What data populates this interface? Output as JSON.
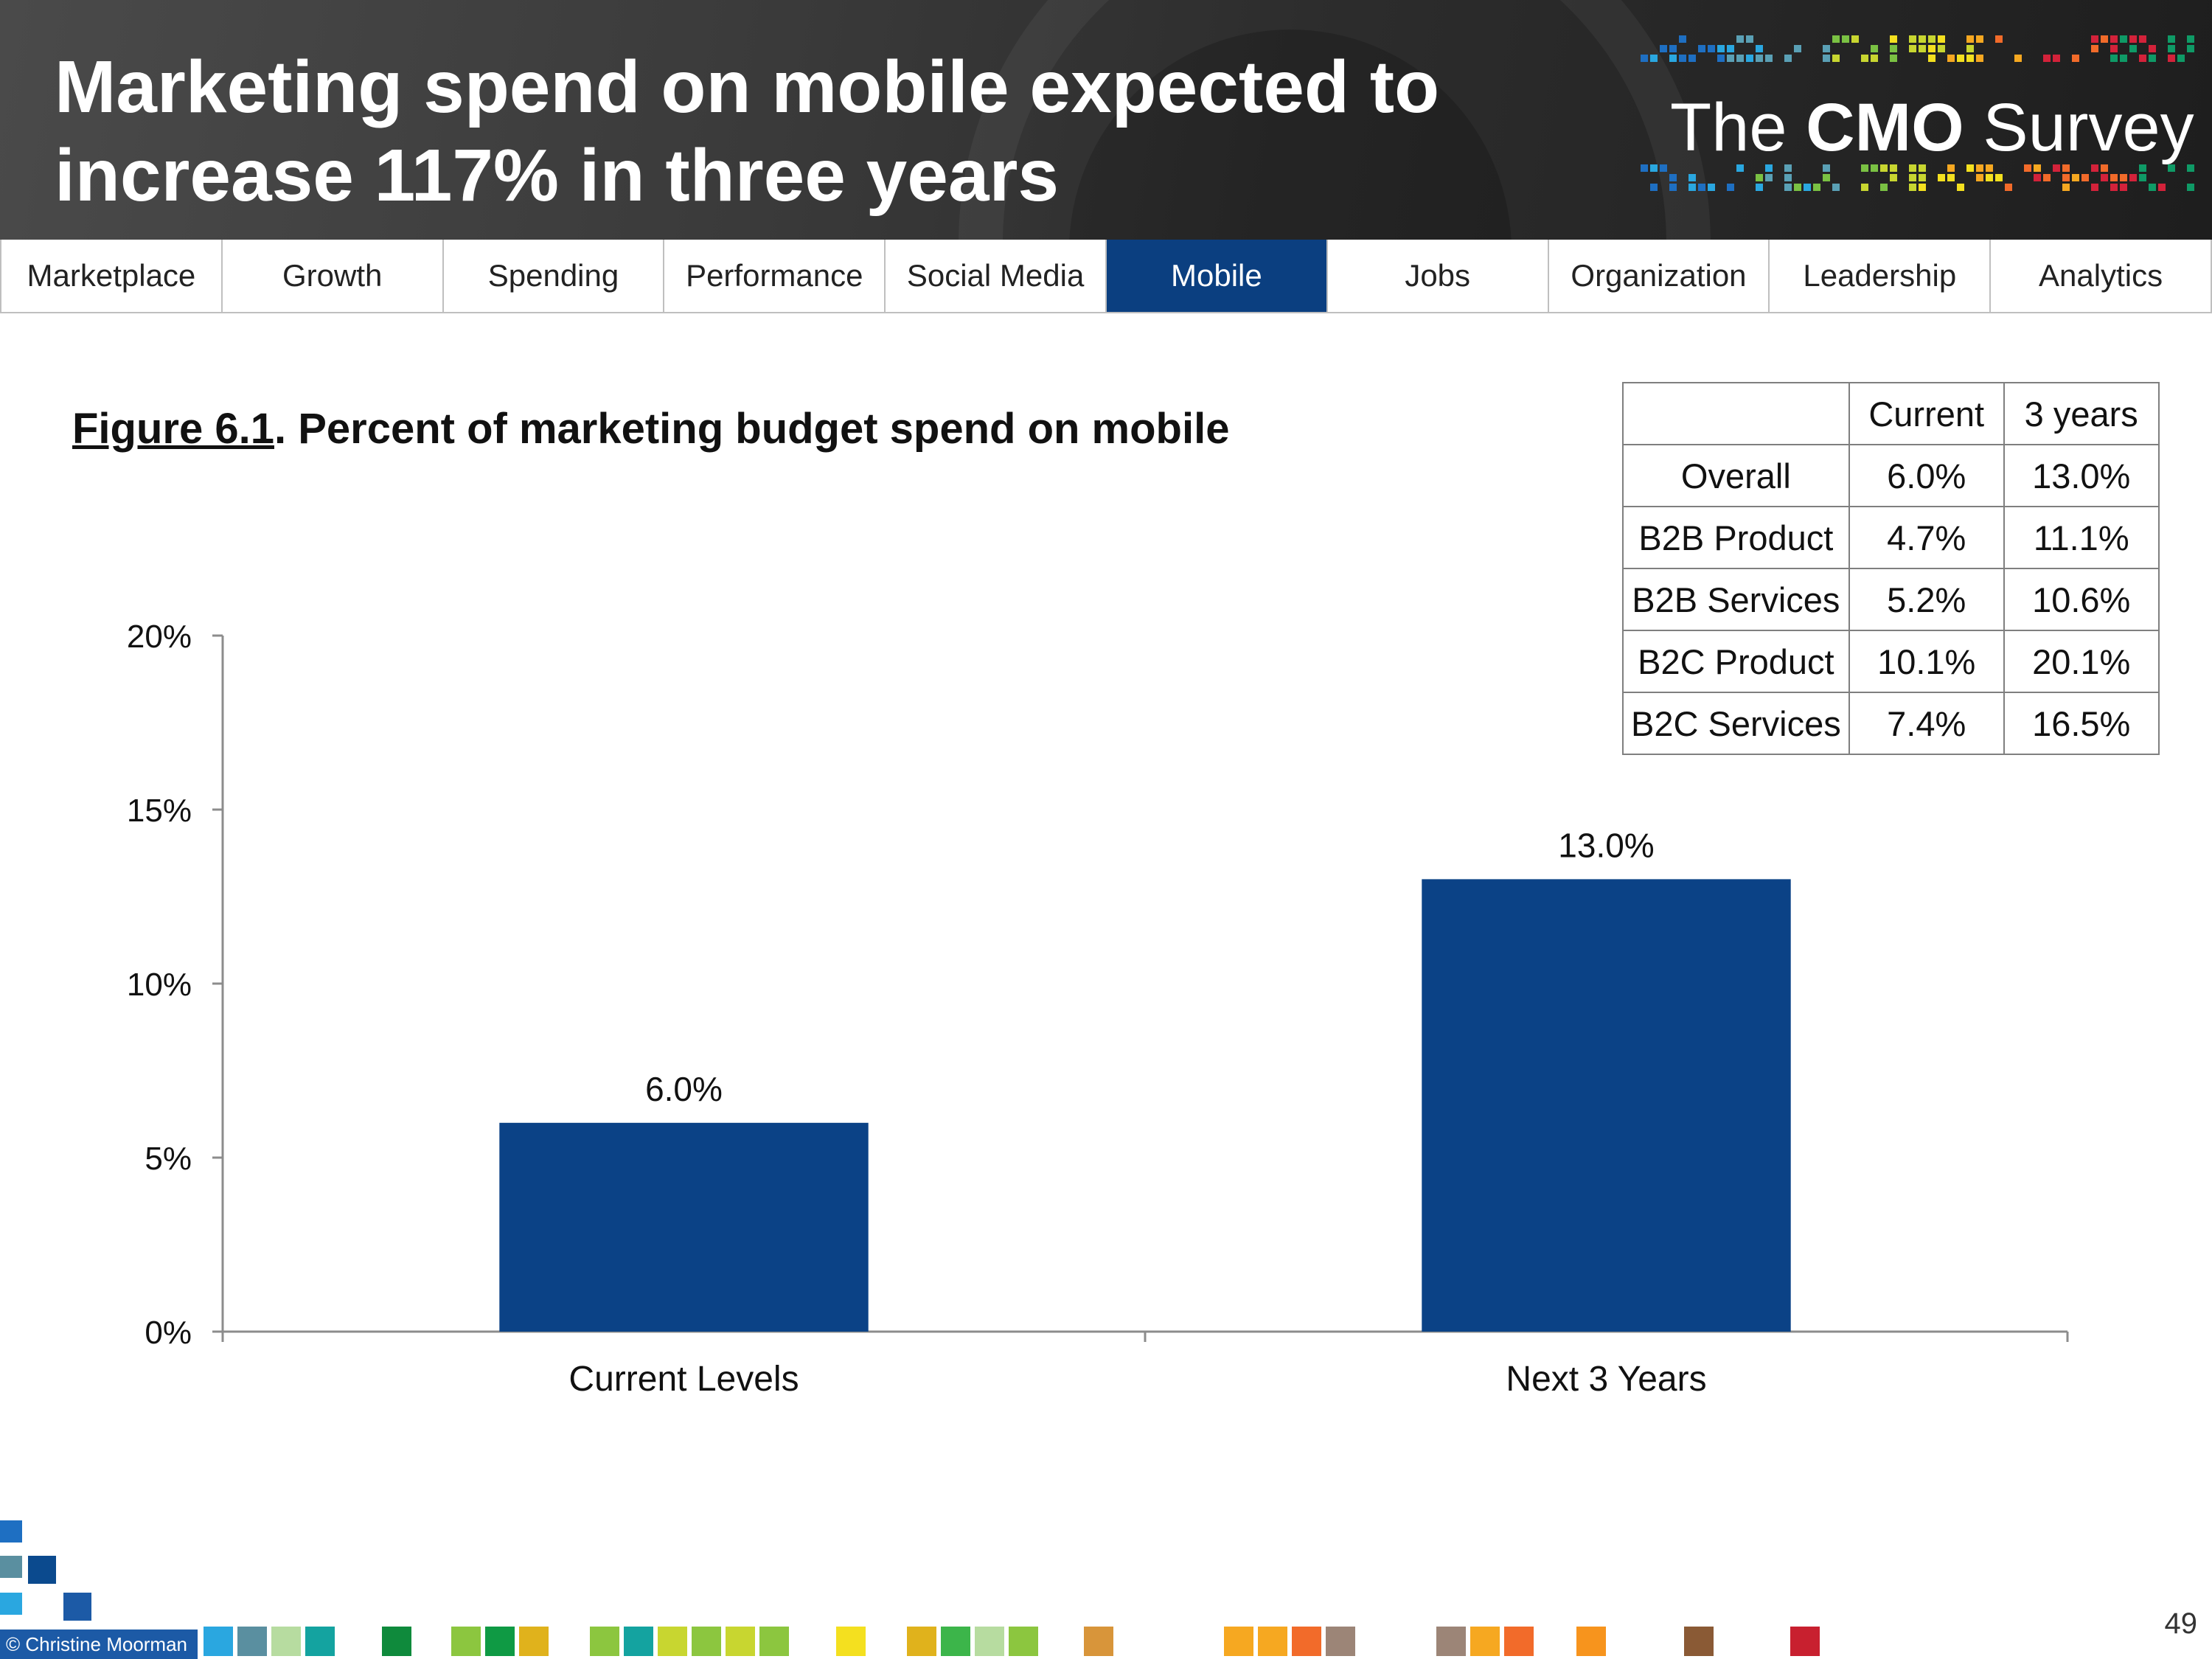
{
  "header": {
    "title_line1": "Marketing spend on mobile expected to",
    "title_line2": "increase 117% in three years",
    "logo_prefix": "The ",
    "logo_bold": "CMO",
    "logo_suffix": " Survey"
  },
  "nav": {
    "tabs": [
      {
        "label": "Marketplace",
        "active": false
      },
      {
        "label": "Growth",
        "active": false
      },
      {
        "label": "Spending",
        "active": false
      },
      {
        "label": "Performance",
        "active": false
      },
      {
        "label": "Social Media",
        "active": false
      },
      {
        "label": "Mobile",
        "active": true
      },
      {
        "label": "Jobs",
        "active": false
      },
      {
        "label": "Organization",
        "active": false
      },
      {
        "label": "Leadership",
        "active": false
      },
      {
        "label": "Analytics",
        "active": false
      }
    ]
  },
  "figure": {
    "number": "Figure 6.1",
    "title": ".  Percent of marketing budget spend on mobile"
  },
  "table": {
    "headers": [
      "",
      "Current",
      "3 years"
    ],
    "rows": [
      [
        "Overall",
        "6.0%",
        "13.0%"
      ],
      [
        "B2B Product",
        "4.7%",
        "11.1%"
      ],
      [
        "B2B Services",
        "5.2%",
        "10.6%"
      ],
      [
        "B2C Product",
        "10.1%",
        "20.1%"
      ],
      [
        "B2C Services",
        "7.4%",
        "16.5%"
      ]
    ]
  },
  "chart_data": {
    "type": "bar",
    "title": "Percent of marketing budget spend on mobile",
    "categories": [
      "Current Levels",
      "Next 3 Years"
    ],
    "values": [
      6.0,
      13.0
    ],
    "value_labels": [
      "6.0%",
      "13.0%"
    ],
    "ylim": [
      0,
      20
    ],
    "yticks": [
      0,
      5,
      10,
      15,
      20
    ],
    "ytick_labels": [
      "0%",
      "5%",
      "10%",
      "15%",
      "20%"
    ],
    "xlabel": "",
    "ylabel": "",
    "grid": false,
    "bar_color": "#0b4286"
  },
  "footer": {
    "copyright": "© Christine Moorman",
    "page_number": "49"
  },
  "colors": {
    "accent": "#0b3f80",
    "header_bg": "#3a3a3a"
  }
}
